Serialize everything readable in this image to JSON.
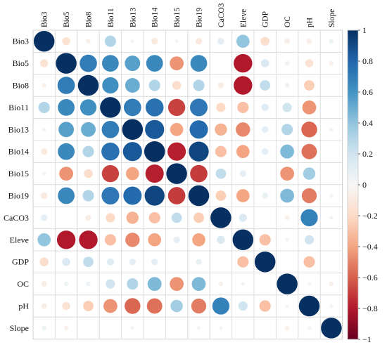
{
  "chart_data": {
    "type": "heatmap",
    "style": "circle-correlation-matrix",
    "variables": [
      "Bio3",
      "Bio5",
      "Bio8",
      "Bio11",
      "Bio13",
      "Bio14",
      "Bio15",
      "Bio19",
      "CaCO3",
      "Eleve",
      "GDP",
      "OC",
      "pH",
      "Slope"
    ],
    "matrix": [
      [
        1.0,
        -0.15,
        -0.05,
        0.3,
        0.03,
        -0.1,
        0.03,
        -0.1,
        0.1,
        0.4,
        -0.18,
        -0.07,
        -0.07,
        0.05
      ],
      [
        -0.15,
        1.0,
        0.7,
        0.65,
        0.55,
        0.65,
        -0.45,
        0.65,
        0.0,
        -0.8,
        0.15,
        0.05,
        -0.15,
        -0.05
      ],
      [
        -0.05,
        0.7,
        1.0,
        0.62,
        0.5,
        0.3,
        -0.18,
        0.3,
        -0.08,
        -0.8,
        0.25,
        0.05,
        -0.25,
        0.0
      ],
      [
        0.3,
        0.65,
        0.62,
        1.0,
        0.7,
        0.75,
        -0.68,
        0.72,
        -0.2,
        -0.3,
        0.12,
        0.2,
        -0.45,
        0.0
      ],
      [
        0.03,
        0.55,
        0.5,
        0.7,
        1.0,
        0.85,
        -0.4,
        0.78,
        -0.35,
        -0.48,
        0.1,
        0.3,
        -0.58,
        0.03
      ],
      [
        -0.1,
        0.65,
        0.3,
        0.75,
        0.85,
        1.0,
        -0.78,
        0.92,
        -0.3,
        -0.4,
        0.1,
        0.45,
        -0.55,
        0.0
      ],
      [
        0.03,
        -0.45,
        -0.18,
        -0.68,
        -0.4,
        -0.78,
        1.0,
        -0.7,
        0.25,
        0.1,
        0.0,
        -0.45,
        0.35,
        0.0
      ],
      [
        -0.1,
        0.65,
        0.3,
        0.72,
        0.78,
        0.92,
        -0.7,
        1.0,
        -0.25,
        -0.4,
        0.08,
        0.45,
        -0.52,
        0.03
      ],
      [
        0.1,
        0.0,
        -0.08,
        -0.2,
        -0.35,
        -0.3,
        0.25,
        -0.25,
        1.0,
        0.15,
        0.0,
        -0.05,
        0.68,
        0.03
      ],
      [
        0.4,
        -0.8,
        -0.8,
        -0.3,
        -0.48,
        -0.4,
        0.1,
        -0.4,
        0.15,
        1.0,
        -0.3,
        0.03,
        0.2,
        0.0
      ],
      [
        -0.18,
        0.15,
        0.25,
        0.12,
        0.1,
        0.1,
        0.0,
        0.08,
        0.0,
        -0.3,
        1.0,
        0.0,
        -0.3,
        0.0
      ],
      [
        -0.07,
        0.05,
        0.05,
        0.2,
        0.3,
        0.45,
        -0.45,
        0.45,
        -0.05,
        0.03,
        0.0,
        1.0,
        -0.03,
        -0.05
      ],
      [
        -0.07,
        -0.15,
        -0.25,
        -0.45,
        -0.58,
        -0.55,
        0.35,
        -0.52,
        0.68,
        0.2,
        -0.3,
        -0.03,
        1.0,
        -0.03
      ],
      [
        0.05,
        -0.05,
        0.0,
        0.0,
        0.03,
        0.0,
        0.0,
        0.03,
        0.03,
        0.0,
        0.0,
        -0.05,
        -0.03,
        1.0
      ]
    ],
    "colorbar": {
      "range": [
        -1,
        1
      ],
      "ticks": [
        "1",
        "0.8",
        "0.6",
        "0.4",
        "0.2",
        "0",
        "−0.2",
        "−0.4",
        "−0.6",
        "−0.8",
        "−1"
      ],
      "tick_values": [
        1,
        0.8,
        0.6,
        0.4,
        0.2,
        0,
        -0.2,
        -0.4,
        -0.6,
        -0.8,
        -1
      ],
      "stops": [
        [
          -1,
          "#67001f"
        ],
        [
          -0.8,
          "#b2182b"
        ],
        [
          -0.6,
          "#d6604d"
        ],
        [
          -0.4,
          "#f4a582"
        ],
        [
          -0.2,
          "#fddbc7"
        ],
        [
          0,
          "#f7f7f7"
        ],
        [
          0.2,
          "#d1e5f0"
        ],
        [
          0.4,
          "#92c5de"
        ],
        [
          0.6,
          "#4393c3"
        ],
        [
          0.8,
          "#2166ac"
        ],
        [
          1,
          "#053061"
        ]
      ]
    },
    "title": "",
    "xlabel": "",
    "ylabel": "",
    "grid": true,
    "legend": "colorbar-right"
  }
}
